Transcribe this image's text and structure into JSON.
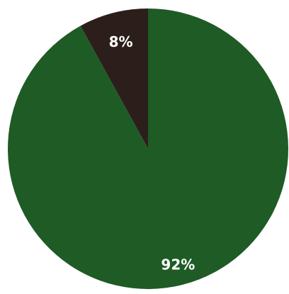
{
  "chart_data": {
    "type": "pie",
    "title": "",
    "start_angle_deg": -90,
    "direction": "counterclockwise",
    "slices": [
      {
        "label": "",
        "value": 8,
        "display": "8%",
        "color": "#2c1f1b"
      },
      {
        "label": "",
        "value": 92,
        "display": "92%",
        "color": "#1e5b25"
      }
    ]
  }
}
